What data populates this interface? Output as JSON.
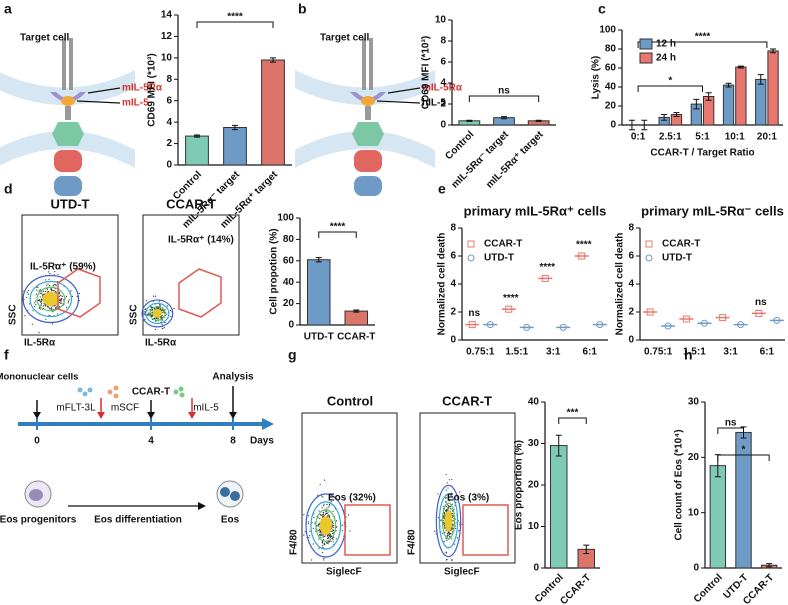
{
  "panel_labels": [
    "a",
    "b",
    "c",
    "d",
    "e",
    "f",
    "g",
    "h"
  ],
  "diagram_a": {
    "cell_label": "Target cell",
    "receptor": "mIL-5Rα",
    "ligand": "mIL-5"
  },
  "diagram_b": {
    "cell_label": "Target cell",
    "receptor": "mIL-5Rα",
    "ligand": "hIL-5"
  },
  "flow_d": {
    "plots": [
      {
        "title": "UTD-T",
        "gate": "IL-5Rα⁺ (59%)"
      },
      {
        "title": "CCAR-T",
        "gate": "IL-5Rα⁺ (14%)"
      }
    ],
    "y_label": "SSC",
    "x_label": "IL-5Rα"
  },
  "timeline_f": {
    "start_cells": "Mononuclear cells",
    "cytokines_1": [
      "mFLT-3L",
      "mSCF"
    ],
    "car": "CCAR-T",
    "cytokine_2": "mIL-5",
    "end": "Analysis",
    "days": [
      "0",
      "4",
      "8"
    ],
    "unit": "Days",
    "progenitor": "Eos progenitors",
    "process": "Eos differentiation",
    "product": "Eos"
  },
  "flow_g": {
    "plots": [
      {
        "title": "Control",
        "gate": "Eos (32%)"
      },
      {
        "title": "CCAR-T",
        "gate": "Eos (3%)"
      }
    ],
    "y_label": "F4/80",
    "x_label": "SiglecF"
  },
  "chart_data": [
    {
      "type": "bar",
      "y_label": "CD69 MFI (*10³)",
      "categories": [
        "Control",
        "mIL-5Rα⁻ target",
        "mIL-5Rα⁺ target"
      ],
      "values": [
        2.7,
        3.5,
        9.8
      ],
      "errors": [
        0.1,
        0.2,
        0.2
      ],
      "colors": [
        "#7fcab5",
        "#6e9bc5",
        "#dc7469"
      ],
      "ylim": [
        0,
        14
      ],
      "yticks": [
        0,
        2,
        4,
        6,
        8,
        10,
        12,
        14
      ],
      "annotations": [
        "****"
      ]
    },
    {
      "type": "bar",
      "y_label": "CD69 MFI (*10³)",
      "categories": [
        "Control",
        "mIL-5Rα⁻ target",
        "mIL-5Rα⁺ target"
      ],
      "values": [
        0.4,
        0.7,
        0.4
      ],
      "errors": [
        0.05,
        0.1,
        0.05
      ],
      "colors": [
        "#7fcab5",
        "#6e9bc5",
        "#dc7469"
      ],
      "ylim": [
        0,
        10
      ],
      "yticks": [
        0,
        2,
        4,
        6,
        8,
        10
      ],
      "annotations": [
        "ns"
      ]
    },
    {
      "type": "grouped_bar",
      "y_label": "Lysis (%)",
      "x_label": "CCAR-T / Target Ratio",
      "categories": [
        "0:1",
        "2.5:1",
        "5:1",
        "10:1",
        "20:1"
      ],
      "series": [
        {
          "name": "12 h",
          "color": "#6e9bc5",
          "values": [
            0,
            8,
            22,
            42,
            48
          ],
          "errors": [
            5,
            3,
            5,
            2,
            5
          ]
        },
        {
          "name": "24 h",
          "color": "#e8776f",
          "values": [
            0,
            11,
            30,
            61,
            78
          ],
          "errors": [
            5,
            2,
            4,
            1,
            2
          ]
        }
      ],
      "ylim": [
        0,
        100
      ],
      "yticks": [
        0,
        20,
        40,
        60,
        80,
        100
      ],
      "annotations": [
        "****",
        "*"
      ],
      "legend": "upper left"
    },
    {
      "type": "bar",
      "y_label": "Cell propotion (%)",
      "categories": [
        "UTD-T",
        "CCAR-T"
      ],
      "values": [
        61,
        13
      ],
      "errors": [
        2,
        1
      ],
      "colors": [
        "#6e9bc5",
        "#dc7469"
      ],
      "ylim": [
        0,
        100
      ],
      "yticks": [
        0,
        20,
        40,
        60,
        80,
        100
      ],
      "annotations": [
        "****"
      ]
    },
    {
      "type": "dot",
      "title": "primary mIL-5Rα⁺ cells",
      "y_label": "Normalized cell death",
      "categories": [
        "0.75:1",
        "1.5:1",
        "3:1",
        "6:1"
      ],
      "series": [
        {
          "name": "CCAR-T",
          "color": "#e8776f",
          "marker": "square",
          "values": [
            1.1,
            2.2,
            4.4,
            6.0
          ]
        },
        {
          "name": "UTD-T",
          "color": "#6e9bc5",
          "marker": "circle",
          "values": [
            1.1,
            0.9,
            0.9,
            1.1
          ]
        }
      ],
      "ylim": [
        0,
        8
      ],
      "yticks": [
        0,
        2,
        4,
        6,
        8
      ],
      "annotations": [
        "ns",
        "****",
        "****",
        "****"
      ],
      "legend": "upper left"
    },
    {
      "type": "dot",
      "title": "primary mIL-5Rα⁻ cells",
      "y_label": "Normalized cell death",
      "categories": [
        "0.75:1",
        "1.5:1",
        "3:1",
        "6:1"
      ],
      "series": [
        {
          "name": "CCAR-T",
          "color": "#e8776f",
          "marker": "square",
          "values": [
            2.0,
            1.5,
            1.6,
            1.9
          ]
        },
        {
          "name": "UTD-T",
          "color": "#6e9bc5",
          "marker": "circle",
          "values": [
            1.0,
            1.2,
            1.1,
            1.4
          ]
        }
      ],
      "ylim": [
        0,
        8
      ],
      "yticks": [
        0,
        2,
        4,
        6,
        8
      ],
      "annotations": [
        null,
        null,
        null,
        "ns"
      ],
      "legend": "upper left"
    },
    {
      "type": "bar",
      "y_label": "Eos proportion (%)",
      "categories": [
        "Control",
        "CCAR-T"
      ],
      "values": [
        29.5,
        4.5
      ],
      "errors": [
        2.5,
        1
      ],
      "colors": [
        "#7fcab5",
        "#dc7469"
      ],
      "ylim": [
        0,
        40
      ],
      "yticks": [
        0,
        10,
        20,
        30,
        40
      ],
      "annotations": [
        "***"
      ]
    },
    {
      "type": "bar",
      "y_label": "Cell count of Eos (*10⁴)",
      "categories": [
        "Control",
        "UTD-T",
        "CCAR-T"
      ],
      "values": [
        18.5,
        24.5,
        0.5
      ],
      "errors": [
        2,
        1,
        0.3
      ],
      "colors": [
        "#7fcab5",
        "#6e9bc5",
        "#dc7469"
      ],
      "ylim": [
        0,
        30
      ],
      "yticks": [
        0,
        10,
        20,
        30
      ],
      "annotations": [
        "ns",
        "*"
      ]
    }
  ]
}
